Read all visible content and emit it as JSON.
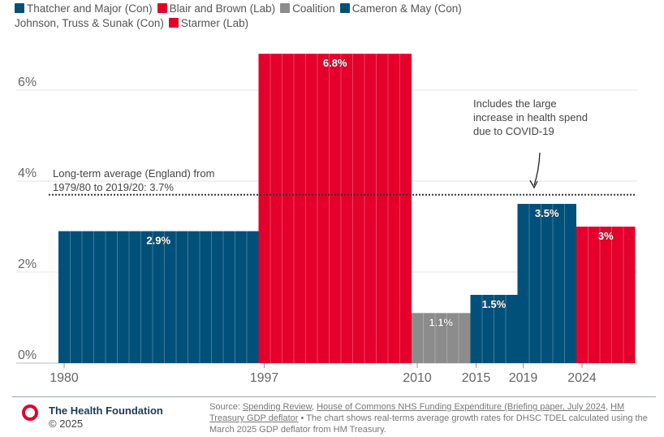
{
  "legend": [
    {
      "label": "Thatcher and Major (Con)",
      "color": "#00507a"
    },
    {
      "label": "Blair and Brown (Lab)",
      "color": "#e4002b"
    },
    {
      "label": "Coalition",
      "color": "#8c8c8c"
    },
    {
      "label": "Cameron & May (Con)",
      "color": "#00507a"
    },
    {
      "label": "Johnson, Truss & Sunak (Con)",
      "color": null
    },
    {
      "label": "Starmer (Lab)",
      "color": "#e4002b"
    }
  ],
  "chart_data": {
    "type": "bar",
    "title": "",
    "xlabel": "",
    "ylabel": "",
    "ylim": [
      0,
      7
    ],
    "yticks": [
      {
        "v": 0,
        "label": "0%"
      },
      {
        "v": 2,
        "label": "2%"
      },
      {
        "v": 4,
        "label": "4%"
      },
      {
        "v": 6,
        "label": "6%"
      }
    ],
    "xticks": [
      "1980",
      "1997",
      "2010",
      "2015",
      "2019",
      "2024"
    ],
    "grid": true,
    "bars": [
      {
        "start": 1980,
        "end": 1997,
        "value": 2.9,
        "label": "2.9%",
        "color": "#00507a"
      },
      {
        "start": 1997,
        "end": 2010,
        "value": 6.8,
        "label": "6.8%",
        "color": "#e4002b"
      },
      {
        "start": 2010,
        "end": 2015,
        "value": 1.1,
        "label": "1.1%",
        "color": "#8c8c8c"
      },
      {
        "start": 2015,
        "end": 2019,
        "value": 1.5,
        "label": "1.5%",
        "color": "#00507a"
      },
      {
        "start": 2019,
        "end": 2024,
        "value": 3.5,
        "label": "3.5%",
        "color": "#00507a"
      },
      {
        "start": 2024,
        "end": 2029,
        "value": 3.0,
        "label": "3%",
        "color": "#e4002b"
      }
    ],
    "reference_line": {
      "value": 3.7,
      "label_lines": [
        "Long-term average (England) from",
        "1979/80 to 2019/20: 3.7%"
      ]
    },
    "annotation": {
      "lines": [
        "Includes the large",
        "increase in health spend",
        "due to COVID-19"
      ],
      "points_to_year": 2020
    }
  },
  "footer": {
    "org": "The Health Foundation",
    "copyright": "© 2025",
    "source_prefix": "Source: ",
    "link1": "Spending Review",
    "link2": "House of Commons NHS Funding Expenditure (Briefing paper, July 2024",
    "link3": "HM Treasury GDP deflator",
    "note": " • The chart shows real-terms average growth rates for DHSC TDEL calculated using the March 2025 GDP deflator from HM Treasury."
  }
}
